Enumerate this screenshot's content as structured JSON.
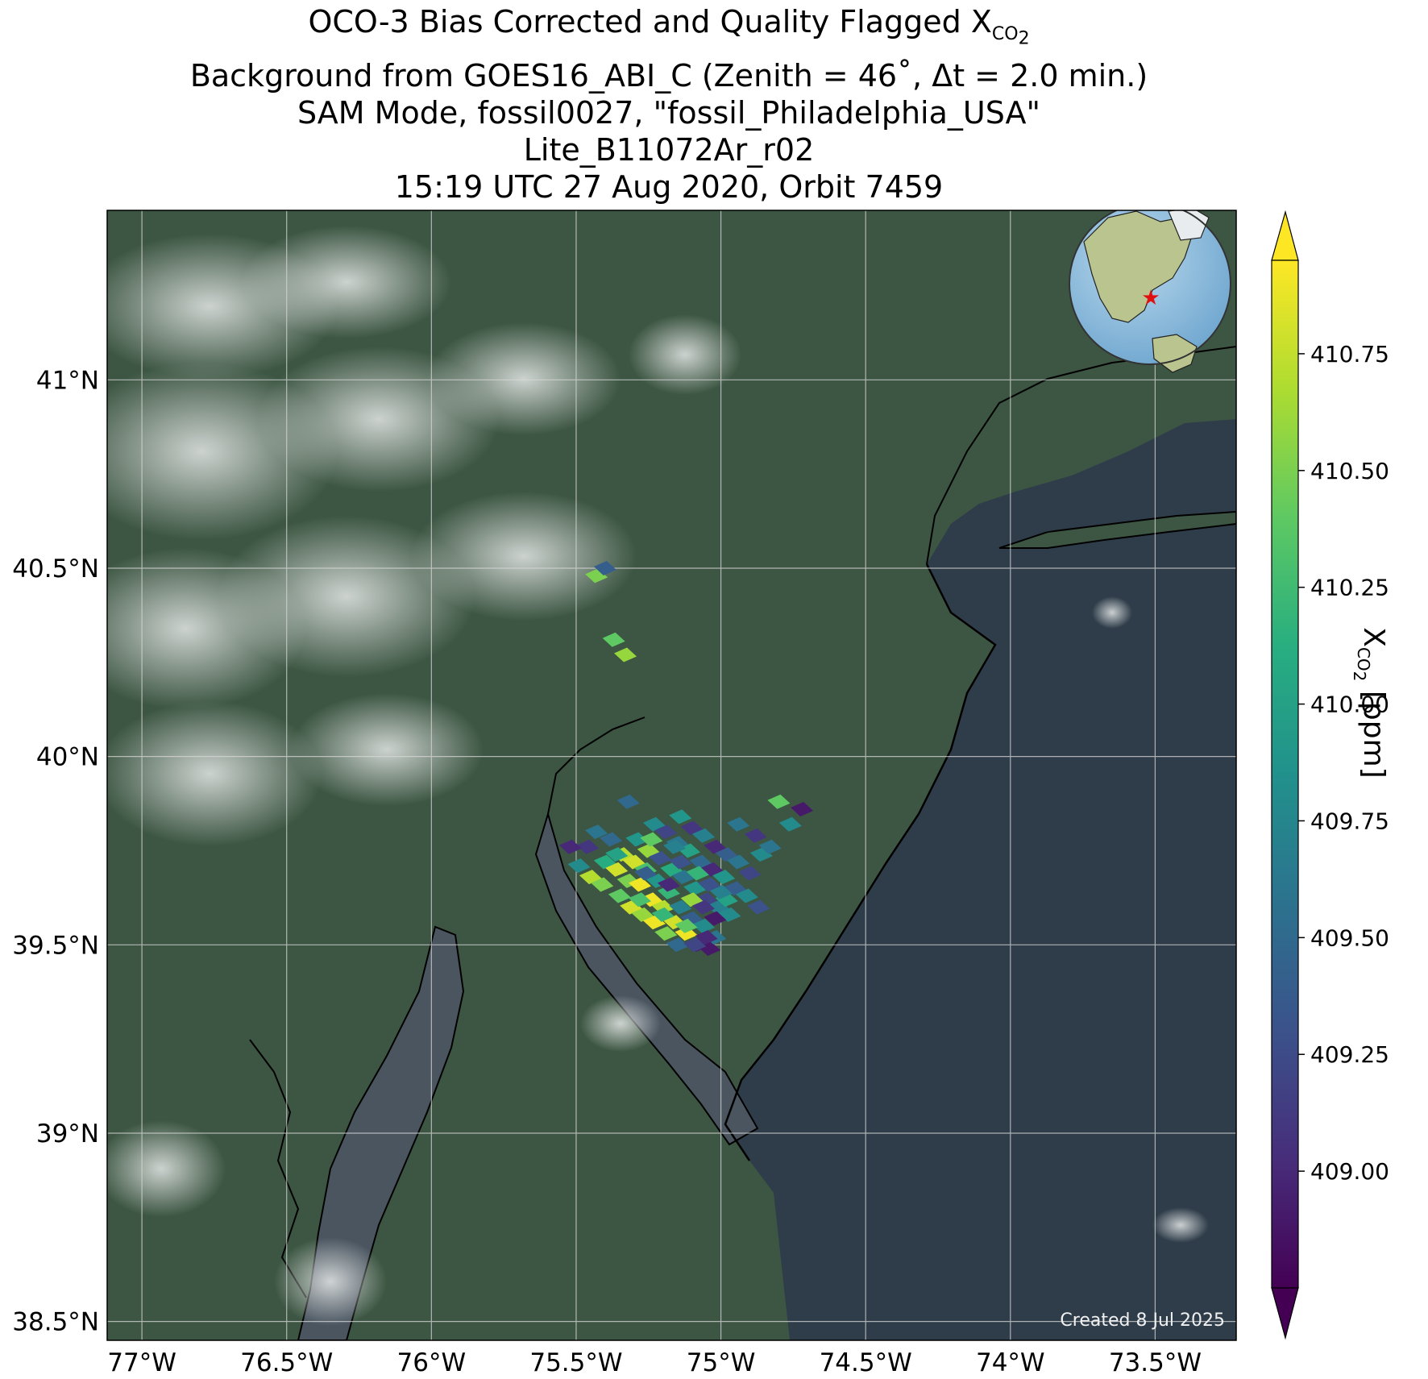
{
  "title": {
    "line1_prefix": "OCO-3 Bias Corrected and Quality Flagged X",
    "line1_sub": "CO",
    "line1_subsub": "2",
    "line2": "Background from GOES16_ABI_C (Zenith = 46˚, Δt =  2.0 min.)",
    "line3": "SAM Mode, fossil0027, \"fossil_Philadelphia_USA\"",
    "line4": "Lite_B11072Ar_r02",
    "line5": "15:19 UTC 27 Aug 2020, Orbit 7459"
  },
  "map": {
    "lat_ticks": [
      "41°N",
      "40.5°N",
      "40°N",
      "39.5°N",
      "39°N",
      "38.5°N"
    ],
    "lon_ticks": [
      "77°W",
      "76.5°W",
      "76°W",
      "75.5°W",
      "75°W",
      "74.5°W",
      "74°W",
      "73.5°W"
    ],
    "credit": "Created 8 Jul 2025",
    "colors": {
      "land": "#3d5643",
      "ocean": "#2f3d4a",
      "bay": "#4a5560",
      "coast": "#000000",
      "marker": "#e01010"
    }
  },
  "colorbar": {
    "label_prefix": "X",
    "label_sub": "CO",
    "label_subsub": "2",
    "label_suffix": " [ppm]",
    "ticks": [
      "410.75",
      "410.50",
      "410.25",
      "410.00",
      "409.75",
      "409.50",
      "409.25",
      "409.00"
    ],
    "extend": "both",
    "colormap": "viridis"
  },
  "chart_data": {
    "type": "scatter",
    "x_label": "Longitude",
    "y_label": "Latitude",
    "xlim": [
      -77.12,
      -73.22
    ],
    "ylim": [
      38.45,
      41.45
    ],
    "vlim": [
      408.75,
      410.95
    ],
    "soundings": [
      [
        -75.43,
        40.48,
        410.5
      ],
      [
        -75.4,
        40.5,
        409.4
      ],
      [
        -75.37,
        40.31,
        410.4
      ],
      [
        -75.33,
        40.27,
        410.6
      ],
      [
        -75.46,
        39.76,
        409.1
      ],
      [
        -75.43,
        39.8,
        409.6
      ],
      [
        -75.4,
        39.72,
        410.1
      ],
      [
        -75.38,
        39.78,
        409.5
      ],
      [
        -75.36,
        39.7,
        410.8
      ],
      [
        -75.34,
        39.74,
        410.7
      ],
      [
        -75.32,
        39.67,
        410.5
      ],
      [
        -75.3,
        39.72,
        410.8
      ],
      [
        -75.28,
        39.66,
        410.9
      ],
      [
        -75.26,
        39.7,
        410.3
      ],
      [
        -75.24,
        39.62,
        410.9
      ],
      [
        -75.22,
        39.67,
        409.9
      ],
      [
        -75.2,
        39.6,
        410.7
      ],
      [
        -75.18,
        39.64,
        410.2
      ],
      [
        -75.16,
        39.56,
        410.8
      ],
      [
        -75.14,
        39.6,
        409.7
      ],
      [
        -75.12,
        39.53,
        410.9
      ],
      [
        -75.1,
        39.57,
        409.4
      ],
      [
        -75.08,
        39.5,
        409.0
      ],
      [
        -75.06,
        39.55,
        409.8
      ],
      [
        -75.04,
        39.49,
        408.9
      ],
      [
        -75.02,
        39.52,
        409.6
      ],
      [
        -75.35,
        39.63,
        410.4
      ],
      [
        -75.31,
        39.6,
        410.8
      ],
      [
        -75.27,
        39.58,
        410.6
      ],
      [
        -75.23,
        39.56,
        410.9
      ],
      [
        -75.19,
        39.53,
        410.5
      ],
      [
        -75.15,
        39.5,
        409.5
      ],
      [
        -75.29,
        39.78,
        409.9
      ],
      [
        -75.25,
        39.75,
        410.6
      ],
      [
        -75.21,
        39.73,
        409.3
      ],
      [
        -75.17,
        39.7,
        410.1
      ],
      [
        -75.13,
        39.68,
        409.6
      ],
      [
        -75.09,
        39.65,
        409.9
      ],
      [
        -75.05,
        39.62,
        409.2
      ],
      [
        -75.01,
        39.6,
        409.7
      ],
      [
        -74.97,
        39.58,
        409.8
      ],
      [
        -75.23,
        39.82,
        409.8
      ],
      [
        -75.19,
        39.8,
        409.2
      ],
      [
        -75.15,
        39.77,
        409.6
      ],
      [
        -75.11,
        39.75,
        410.0
      ],
      [
        -75.07,
        39.72,
        409.5
      ],
      [
        -75.03,
        39.7,
        409.0
      ],
      [
        -74.99,
        39.68,
        409.9
      ],
      [
        -74.95,
        39.65,
        409.4
      ],
      [
        -74.91,
        39.63,
        409.8
      ],
      [
        -74.87,
        39.6,
        409.3
      ],
      [
        -75.14,
        39.84,
        409.9
      ],
      [
        -75.1,
        39.81,
        409.1
      ],
      [
        -75.06,
        39.79,
        409.7
      ],
      [
        -75.02,
        39.76,
        409.0
      ],
      [
        -74.98,
        39.74,
        409.4
      ],
      [
        -74.94,
        39.72,
        409.6
      ],
      [
        -74.9,
        39.69,
        409.2
      ],
      [
        -74.86,
        39.74,
        409.8
      ],
      [
        -74.94,
        39.82,
        409.6
      ],
      [
        -74.88,
        39.79,
        409.1
      ],
      [
        -74.83,
        39.76,
        409.6
      ],
      [
        -74.8,
        39.88,
        410.4
      ],
      [
        -74.76,
        39.82,
        409.8
      ],
      [
        -74.72,
        39.86,
        408.9
      ],
      [
        -75.32,
        39.88,
        409.5
      ],
      [
        -75.26,
        39.69,
        409.4
      ],
      [
        -75.18,
        39.66,
        409.0
      ],
      [
        -75.1,
        39.62,
        410.6
      ],
      [
        -75.02,
        39.57,
        408.9
      ],
      [
        -74.98,
        39.62,
        410.0
      ],
      [
        -75.36,
        39.74,
        410.0
      ],
      [
        -75.28,
        39.62,
        410.3
      ],
      [
        -75.2,
        39.58,
        410.2
      ],
      [
        -75.12,
        39.55,
        410.4
      ],
      [
        -75.06,
        39.6,
        409.1
      ],
      [
        -75.0,
        39.64,
        409.7
      ],
      [
        -75.14,
        39.72,
        409.3
      ],
      [
        -75.08,
        39.69,
        410.2
      ],
      [
        -75.24,
        39.78,
        410.4
      ],
      [
        -75.16,
        39.76,
        409.7
      ],
      [
        -75.04,
        39.66,
        409.3
      ],
      [
        -75.52,
        39.76,
        409.0
      ],
      [
        -75.49,
        39.71,
        409.8
      ],
      [
        -75.45,
        39.68,
        410.7
      ],
      [
        -75.41,
        39.66,
        410.5
      ],
      [
        -75.09,
        39.5,
        409.2
      ],
      [
        -75.05,
        39.52,
        409.0
      ]
    ]
  }
}
